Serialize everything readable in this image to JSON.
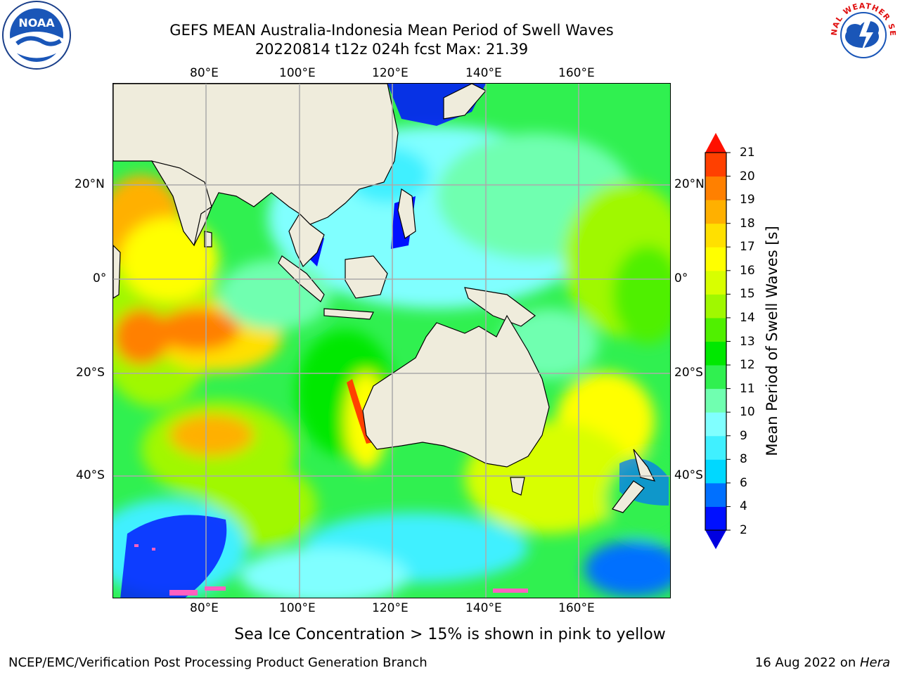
{
  "title": {
    "line1": "GEFS MEAN Australia-Indonesia Mean Period of Swell Waves",
    "line2": "20220814 t12z 024h fcst   Max: 21.39"
  },
  "map": {
    "lon_ticks": [
      "80°E",
      "100°E",
      "120°E",
      "140°E",
      "160°E"
    ],
    "lat_ticks": [
      "20°N",
      "0°",
      "20°S",
      "40°S"
    ],
    "land_color": "#efecdc",
    "grid_color": "#aaaaaa"
  },
  "colorbar": {
    "title": "Mean Period of Swell Waves [s]",
    "levels": [
      "2",
      "4",
      "6",
      "8",
      "9",
      "10",
      "11",
      "12",
      "13",
      "14",
      "15",
      "16",
      "17",
      "18",
      "19",
      "20",
      "21"
    ],
    "colors": [
      "#0010ff",
      "#0070ff",
      "#00d8ff",
      "#40f0ff",
      "#80ffff",
      "#70ffb0",
      "#30f050",
      "#00e800",
      "#50f000",
      "#a0f800",
      "#d8ff00",
      "#ffff00",
      "#ffe000",
      "#ffb000",
      "#ff8000",
      "#ff4000",
      "#ff1000"
    ],
    "under_color": "#0000e0",
    "over_color": "#ff1000"
  },
  "footnote": "Sea Ice Concentration > 15% is shown in pink to yellow",
  "footer": {
    "left": "NCEP/EMC/Verification Post Processing Product Generation Branch",
    "right_date": "16 Aug 2022 on ",
    "right_host": "Hera"
  },
  "logos": {
    "noaa": "NOAA",
    "nws_top": "NATIONAL WEATHER SERVICE"
  }
}
